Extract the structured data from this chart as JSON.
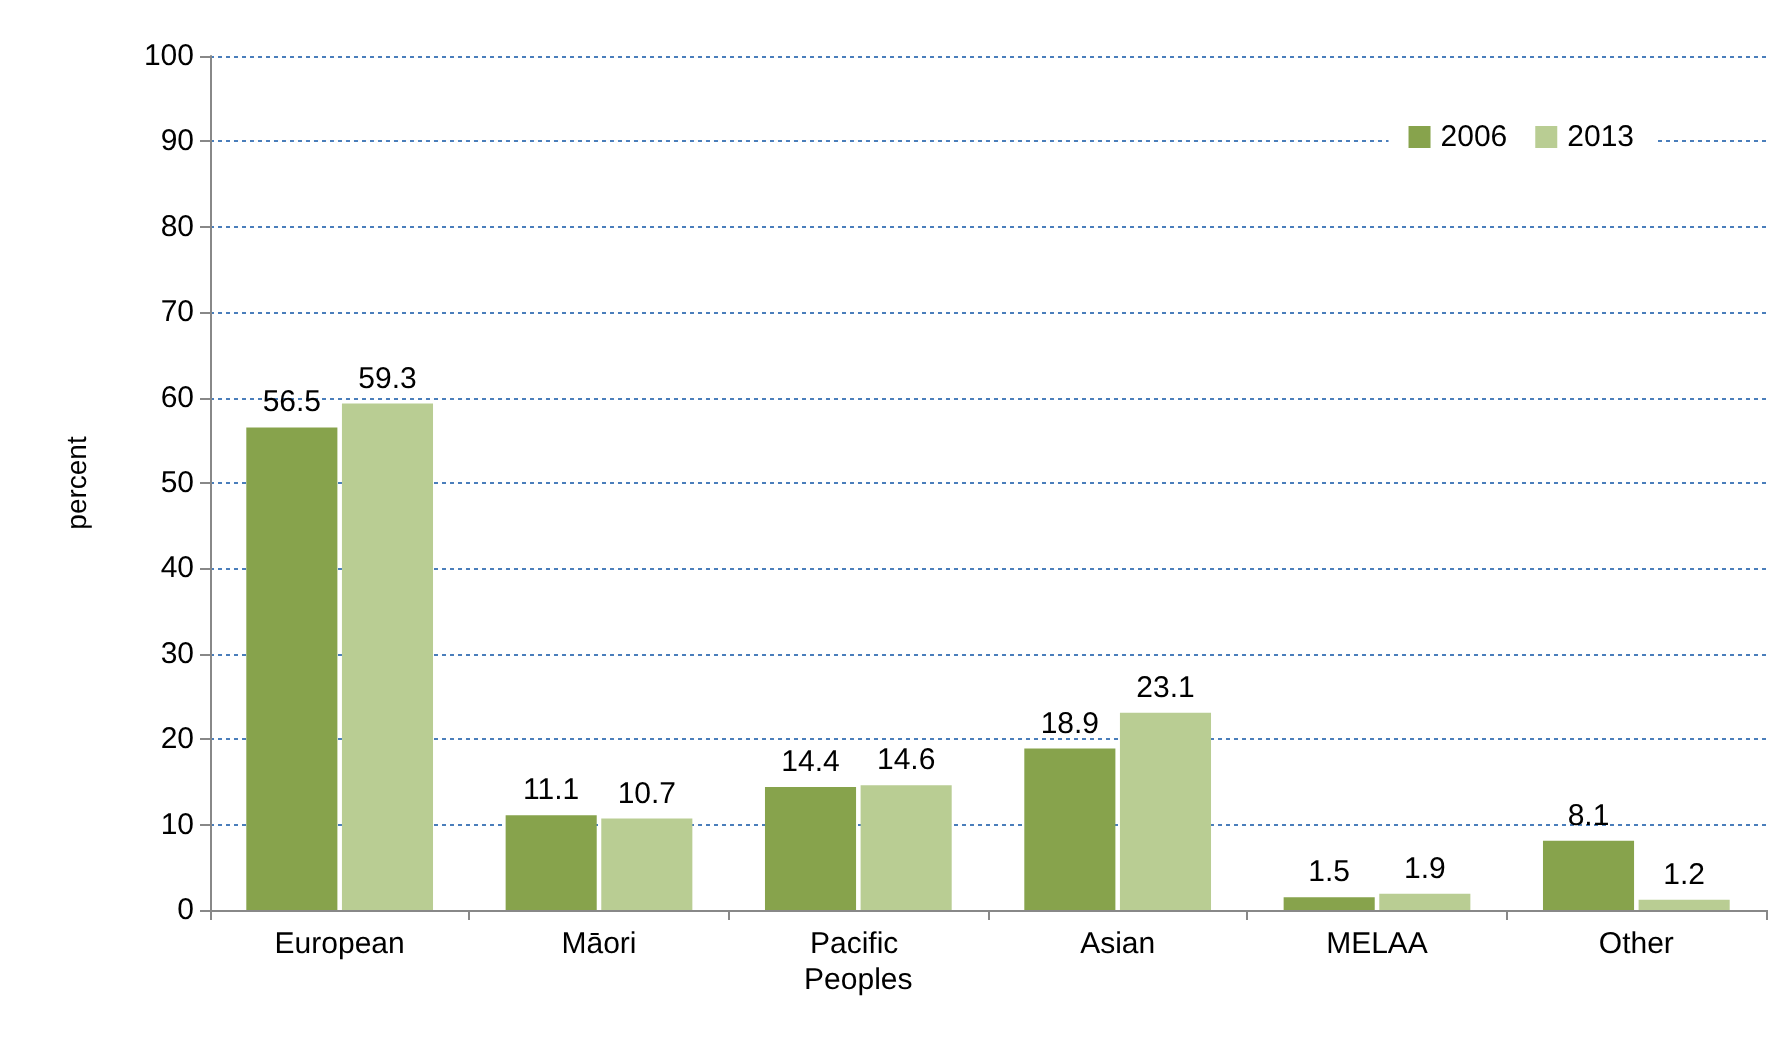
{
  "chart_data": {
    "type": "bar",
    "ylabel": "percent",
    "categories": [
      "European",
      "Māori",
      "Pacific Peoples",
      "Asian",
      "MELAA",
      "Other"
    ],
    "series": [
      {
        "name": "2006",
        "color": "#87a34c",
        "values": [
          56.5,
          11.1,
          14.4,
          18.9,
          1.5,
          8.1
        ]
      },
      {
        "name": "2013",
        "color": "#b9cd93",
        "values": [
          59.3,
          10.7,
          14.6,
          23.1,
          1.9,
          1.2
        ]
      }
    ],
    "ylim": [
      0,
      100
    ],
    "yticks": [
      0,
      10,
      20,
      30,
      40,
      50,
      60,
      70,
      80,
      90,
      100
    ],
    "grid": "y",
    "legend": "top right",
    "data_labels": true
  }
}
